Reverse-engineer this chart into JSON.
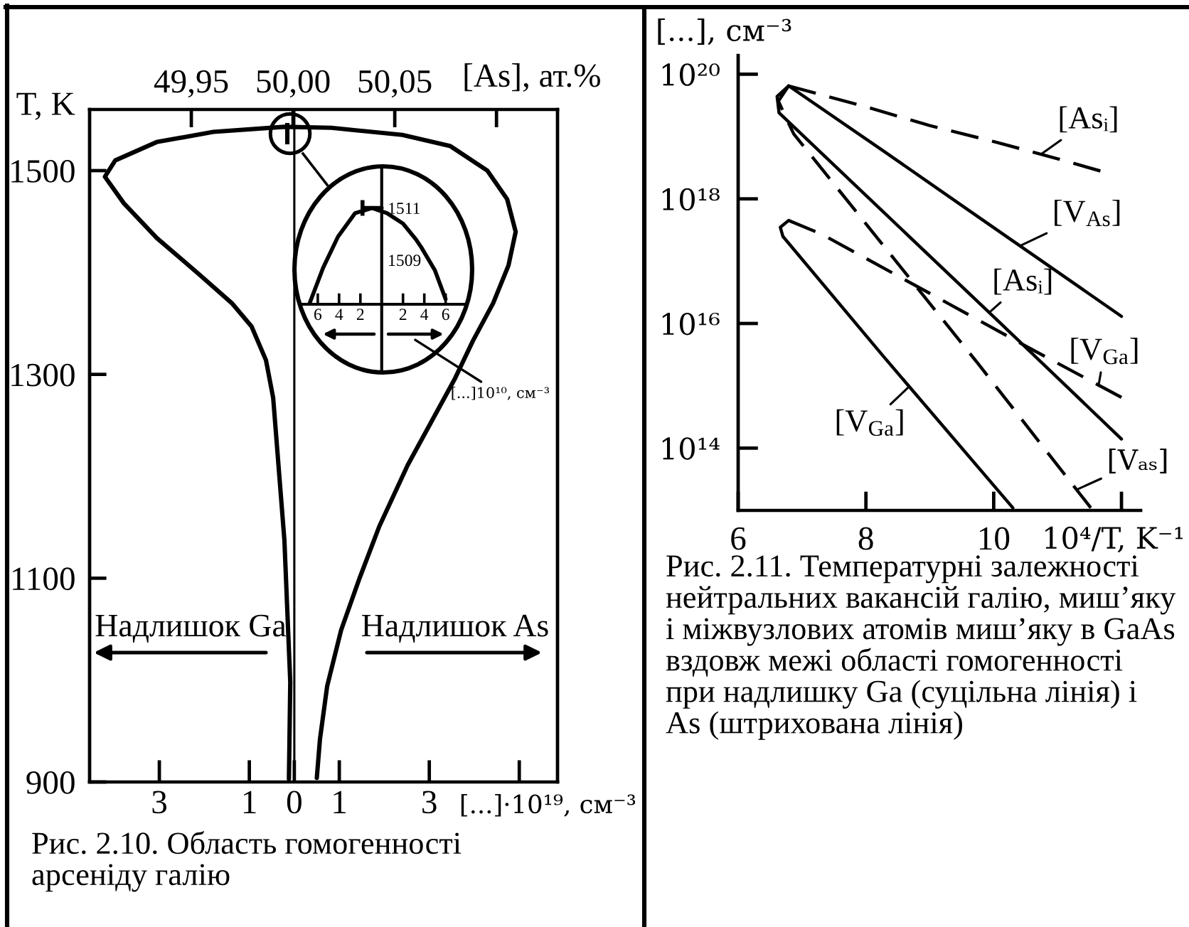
{
  "chart_data": [
    {
      "type": "line",
      "xlabel": "[...]·10¹⁹, см⁻³",
      "ylabel": "T, K",
      "x2label": "[As], ат.%",
      "xlim": [
        -4.55,
        5.85
      ],
      "xticks": [
        {
          "value": -3,
          "label": "3"
        },
        {
          "value": -1,
          "label": "1"
        },
        0,
        1,
        3,
        {
          "value": 5,
          "label": null
        }
      ],
      "x2lim": [
        49.9,
        50.13
      ],
      "x2ticks": [
        {
          "value": 49.95,
          "label": "49,95"
        },
        {
          "value": 50,
          "label": "50,00"
        },
        {
          "value": 50.05,
          "label": "50,05"
        },
        {
          "value": 50.1,
          "label": null
        }
      ],
      "ylim": [
        900,
        1560
      ],
      "yticks": [
        900,
        1100,
        1300,
        1500
      ],
      "series": [
        {
          "color": "#000000",
          "x": [
            -0.12,
            -0.09,
            -0.22,
            -0.47,
            -0.63,
            -0.95,
            -1.39,
            -2.11,
            -3.06,
            -3.79,
            -4.21,
            -3.98,
            -3.06,
            -1.8,
            -0.22,
            0.82,
            2.4,
            3.47,
            4.29,
            4.73,
            4.92,
            4.76,
            4.42,
            3.97,
            3.56,
            2.52,
            1.89,
            1.45,
            1.04,
            0.73,
            0.57,
            0.5
          ],
          "values": [
            903,
            998,
            1137,
            1277,
            1314,
            1347,
            1370,
            1398,
            1434,
            1468,
            1494,
            1510,
            1528,
            1538,
            1543,
            1542,
            1535,
            1524,
            1500,
            1472,
            1440,
            1407,
            1370,
            1333,
            1295,
            1211,
            1151,
            1100,
            1049,
            994,
            942,
            904
          ]
        }
      ],
      "ref_lines": [
        {
          "axis": "x",
          "value": 0,
          "color": "#000000"
        }
      ],
      "annotations": [
        "Надлишок Ga",
        "Надлишок As",
        "Рис. 2.10. Область гомогенності арсеніду галію"
      ]
    },
    {
      "type": "line",
      "xlabel": "[...]10¹⁰, см⁻³",
      "xlim": [
        -7.7,
        8.0
      ],
      "xticks": [
        {
          "value": -6,
          "label": "6"
        },
        {
          "value": -4,
          "label": "4"
        },
        {
          "value": -2,
          "label": "2"
        },
        2,
        4,
        6
      ],
      "ylim": [
        1507.3,
        1512.6
      ],
      "yticks": [
        1509,
        1511
      ],
      "series": [
        {
          "color": "#000000",
          "x": [
            -6.8,
            -5.5,
            -4.1,
            -2.5,
            -0.9,
            0.5,
            2.0,
            3.2,
            3.7,
            5.0,
            6.0
          ],
          "values": [
            1507.3,
            1508.7,
            1509.9,
            1510.8,
            1511.0,
            1510.8,
            1510.4,
            1509.8,
            1509.5,
            1508.6,
            1507.5
          ]
        },
        {
          "color": "#000000",
          "x": [
            -1.8,
            0
          ],
          "values": [
            1511,
            1511
          ],
          "errors": [
            0.3,
            null
          ]
        }
      ],
      "ref_lines": [
        {
          "axis": "x",
          "value": 0,
          "color": "#000000"
        }
      ]
    },
    {
      "type": "line",
      "xlabel": "10⁴/T, K⁻¹",
      "ylabel": "[...], см⁻³",
      "log": "y",
      "xlim": [
        6,
        12.3
      ],
      "xticks": [
        6,
        8,
        10,
        {
          "value": 12,
          "label": null
        }
      ],
      "ylim": [
        10000000000000.0,
        2e+20
      ],
      "yticks": [
        {
          "value": 100000000000000.0,
          "label": "10¹⁴"
        },
        {
          "value": 1e+16,
          "label": "10¹⁶"
        },
        {
          "value": 1e+18,
          "label": "10¹⁸"
        },
        {
          "value": 1e+20,
          "label": "10²⁰"
        }
      ],
      "series": [
        {
          "color": "#000000",
          "line_style": "dashed",
          "x": [
            6.79,
            8,
            9,
            10,
            11,
            11.67
          ],
          "values": [
            6.5e+19,
            3e+19,
            1.5e+19,
            8.3e+18,
            4.4e+18,
            2.8e+18
          ]
        },
        {
          "name": "[V$_{As}$]",
          "color": "#000000",
          "line_style": "solid",
          "x": [
            6.79,
            8.27,
            9.75,
            11.23,
            12.0
          ],
          "values": [
            6.5e+19,
            5.9e+18,
            5.2e+17,
            4.6e+16,
            1.3e+16
          ]
        },
        {
          "color": "#000000",
          "line_style": "solid",
          "x": [
            6.79,
            6.61,
            6.64,
            8.27,
            10.12,
            12.0
          ],
          "values": [
            6.5e+19,
            4.4e+19,
            2.4e+19,
            6.2e+17,
            9800000000000000.0,
            140000000000000.0
          ]
        },
        {
          "name": "[Vₐₛ]",
          "color": "#000000",
          "line_style": "dashed",
          "x": [
            6.79,
            6.63,
            6.75,
            6.87,
            8.27,
            9.75,
            11.52
          ],
          "values": [
            6.5e+19,
            3.7e+19,
            2e+19,
            1.1e+19,
            1.8e+17,
            2300000000000000.0,
            11000000000000.0
          ]
        },
        {
          "color": "#000000",
          "line_style": "solid",
          "x": [
            6.79,
            6.66,
            6.7,
            8.27,
            10.3
          ],
          "values": [
            4.5e+17,
            3.5e+17,
            2.5e+17,
            3000000000000000.0,
            11000000000000.0
          ]
        },
        {
          "color": "#000000",
          "line_style": "dashed",
          "x": [
            6.79,
            7.31,
            9.01,
            10.49,
            12.0
          ],
          "values": [
            4.5e+17,
            2.7e+17,
            3e+16,
            4400000000000000.0,
            650000000000000.0
          ]
        }
      ],
      "annotations": [
        {
          "text": "[Asᵢ]",
          "x": 10.74,
          "y": 5.2e+18
        },
        {
          "text": "[Asᵢ]",
          "x": 9.93,
          "y": 1.5e+16
        },
        {
          "text": "[V$_{Ga}$]",
          "x": 8.68,
          "y": 980000000000000.0
        },
        {
          "text": "[V$_{Ga}$]",
          "x": 11.64,
          "y": 1000000000000000.0
        },
        "Рис. 2.11. Температурні залежності нейтральних вакансій галію, миш’яку і міжвузлових атомів миш’яку в GaAs вздовж межі області гомогенності при надлишку Ga (суцільна лінія) і As (штрихована лінія)"
      ]
    }
  ]
}
